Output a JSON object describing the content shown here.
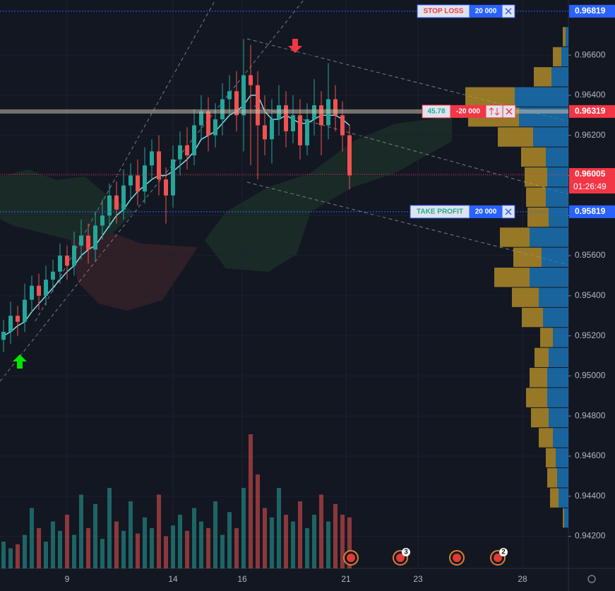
{
  "chart_data": {
    "type": "candlestick",
    "ylim": [
      0.9404,
      0.96875
    ],
    "yticks": [
      {
        "value": 0.942,
        "label": "0.94200"
      },
      {
        "value": 0.944,
        "label": "0.94400"
      },
      {
        "value": 0.946,
        "label": "0.94600"
      },
      {
        "value": 0.948,
        "label": "0.94800"
      },
      {
        "value": 0.95,
        "label": "0.95000"
      },
      {
        "value": 0.952,
        "label": "0.95200"
      },
      {
        "value": 0.954,
        "label": "0.95400"
      },
      {
        "value": 0.956,
        "label": "0.95600"
      },
      {
        "value": 0.958,
        "label": "0.95800"
      },
      {
        "value": 0.96,
        "label": "0.96000"
      },
      {
        "value": 0.962,
        "label": "0.96200"
      },
      {
        "value": 0.964,
        "label": "0.96400"
      },
      {
        "value": 0.966,
        "label": "0.96600"
      }
    ],
    "xlim": [
      0,
      80.5
    ],
    "xticks": [
      {
        "value": 9.5,
        "label": "9"
      },
      {
        "value": 24.5,
        "label": "14"
      },
      {
        "value": 34.3,
        "label": "16"
      },
      {
        "value": 49,
        "label": "21"
      },
      {
        "value": 59.2,
        "label": "23"
      },
      {
        "value": 74,
        "label": "28"
      }
    ],
    "up_color": "#26a69a",
    "down_color": "#ef5350",
    "candles": {
      "x": [
        0.5,
        1.5,
        2.5,
        3.5,
        4.5,
        5.5,
        6.5,
        7.5,
        8.5,
        9.5,
        10.5,
        11.5,
        12.5,
        13.5,
        14.5,
        15.5,
        16.5,
        17.5,
        18.5,
        19.5,
        20.5,
        21.5,
        22.5,
        23.5,
        24.5,
        25.5,
        26.5,
        27.5,
        28.5,
        29.5,
        30.5,
        31.5,
        32.5,
        33.5,
        34.5,
        35.5,
        36.5,
        37.5,
        38.5,
        39.5,
        40.5,
        41.5,
        42.5,
        43.5,
        44.5,
        45.5,
        46.5,
        47.5,
        48.5,
        49.5
      ],
      "open": [
        0.9518,
        0.9522,
        0.953,
        0.9527,
        0.9538,
        0.9545,
        0.954,
        0.9548,
        0.9552,
        0.956,
        0.9555,
        0.9565,
        0.957,
        0.9563,
        0.9575,
        0.958,
        0.959,
        0.9583,
        0.9595,
        0.96,
        0.9592,
        0.9605,
        0.9612,
        0.9598,
        0.959,
        0.9608,
        0.9615,
        0.961,
        0.9625,
        0.9632,
        0.962,
        0.9628,
        0.9638,
        0.9642,
        0.963,
        0.965,
        0.9645,
        0.9625,
        0.9618,
        0.9628,
        0.9635,
        0.9622,
        0.963,
        0.9615,
        0.9628,
        0.9635,
        0.9625,
        0.9638,
        0.963,
        0.962
      ],
      "high": [
        0.9528,
        0.9537,
        0.9535,
        0.9546,
        0.955,
        0.9551,
        0.9555,
        0.9558,
        0.9566,
        0.9565,
        0.9572,
        0.9578,
        0.9576,
        0.9582,
        0.9588,
        0.9596,
        0.9597,
        0.9603,
        0.9606,
        0.9608,
        0.9614,
        0.9618,
        0.962,
        0.9604,
        0.9615,
        0.9622,
        0.9624,
        0.9633,
        0.964,
        0.9639,
        0.9636,
        0.9646,
        0.965,
        0.9652,
        0.9668,
        0.9665,
        0.9652,
        0.964,
        0.9638,
        0.9645,
        0.9642,
        0.964,
        0.9638,
        0.9636,
        0.9648,
        0.9642,
        0.9656,
        0.9645,
        0.9637,
        0.9625
      ],
      "low": [
        0.9512,
        0.9516,
        0.952,
        0.9522,
        0.9532,
        0.9533,
        0.9535,
        0.9542,
        0.9546,
        0.9548,
        0.955,
        0.9558,
        0.9556,
        0.9557,
        0.9568,
        0.9574,
        0.9576,
        0.9578,
        0.9588,
        0.9585,
        0.9586,
        0.9598,
        0.959,
        0.9576,
        0.9584,
        0.96,
        0.9603,
        0.9605,
        0.9618,
        0.9612,
        0.9614,
        0.962,
        0.963,
        0.9622,
        0.9612,
        0.9605,
        0.9598,
        0.961,
        0.9606,
        0.962,
        0.9614,
        0.9616,
        0.9608,
        0.961,
        0.962,
        0.961,
        0.9618,
        0.9622,
        0.9612,
        0.9593
      ],
      "close": [
        0.9522,
        0.953,
        0.9527,
        0.9538,
        0.9545,
        0.954,
        0.9548,
        0.9552,
        0.956,
        0.9555,
        0.9565,
        0.957,
        0.9563,
        0.9575,
        0.958,
        0.959,
        0.9583,
        0.9595,
        0.96,
        0.9592,
        0.9605,
        0.9612,
        0.9598,
        0.959,
        0.9608,
        0.9615,
        0.961,
        0.9625,
        0.9632,
        0.962,
        0.9628,
        0.9638,
        0.9642,
        0.963,
        0.965,
        0.9645,
        0.9625,
        0.9618,
        0.9628,
        0.9635,
        0.9622,
        0.963,
        0.9615,
        0.9628,
        0.9635,
        0.9625,
        0.9638,
        0.963,
        0.962,
        0.96
      ],
      "volume": [
        20,
        15,
        18,
        25,
        45,
        30,
        20,
        35,
        28,
        40,
        25,
        55,
        30,
        48,
        22,
        60,
        35,
        28,
        50,
        26,
        38,
        30,
        55,
        24,
        32,
        40,
        28,
        45,
        35,
        30,
        50,
        25,
        42,
        30,
        60,
        100,
        70,
        45,
        38,
        60,
        40,
        35,
        50,
        30,
        40,
        55,
        35,
        48,
        40,
        38
      ]
    },
    "lines": [
      {
        "color": "#80deea",
        "values": [
          0.952,
          0.9522,
          0.9525,
          0.9527,
          0.9532,
          0.9536,
          0.954,
          0.9544,
          0.9548,
          0.9552,
          0.9555,
          0.956,
          0.9563,
          0.9565,
          0.957,
          0.9575,
          0.958,
          0.9583,
          0.9588,
          0.9592,
          0.9595,
          0.9598,
          0.96,
          0.96,
          0.9602,
          0.9605,
          0.9608,
          0.9612,
          0.9618,
          0.962,
          0.9622,
          0.9626,
          0.963,
          0.9632,
          0.9635,
          0.964,
          0.964,
          0.9632,
          0.9628,
          0.9628,
          0.963,
          0.9628,
          0.9626,
          0.9626,
          0.9628,
          0.963,
          0.963,
          0.963,
          0.9628,
          0.9625
        ]
      }
    ],
    "volume_profile": {
      "up_color": "#c49a2a",
      "down_color": "#1e7fc8",
      "bins": [
        0.9424,
        0.9434,
        0.9444,
        0.9454,
        0.9464,
        0.9474,
        0.9484,
        0.9494,
        0.9504,
        0.9514,
        0.9524,
        0.9534,
        0.9544,
        0.9554,
        0.9564,
        0.9574,
        0.9584,
        0.9594,
        0.9604,
        0.9614,
        0.9624,
        0.9634,
        0.9644,
        0.9654,
        0.9664,
        0.9674
      ],
      "up": [
        2,
        12,
        14,
        14,
        20,
        25,
        30,
        25,
        20,
        18,
        30,
        38,
        50,
        40,
        42,
        30,
        28,
        32,
        35,
        50,
        72,
        70,
        25,
        12,
        4
      ],
      "down": [
        6,
        14,
        16,
        18,
        22,
        28,
        30,
        30,
        28,
        22,
        36,
        42,
        55,
        38,
        55,
        28,
        32,
        30,
        32,
        50,
        70,
        76,
        24,
        10,
        4
      ]
    },
    "orders": [
      {
        "label": "STOP LOSS",
        "quantity": "20 000",
        "price": 0.96819
      },
      {
        "label": "TAKE PROFIT",
        "quantity": "20 000",
        "price": 0.95819
      }
    ],
    "position": {
      "pnl": 45.78,
      "quantity": "-20 000",
      "price": 0.96319
    },
    "last_price": {
      "price": 0.96005,
      "countdown": "01:26:49"
    },
    "events": [
      {
        "x": 49.7
      },
      {
        "x": 56.7,
        "count": 3
      },
      {
        "x": 64.7
      },
      {
        "x": 70.5,
        "count": 2
      }
    ]
  }
}
